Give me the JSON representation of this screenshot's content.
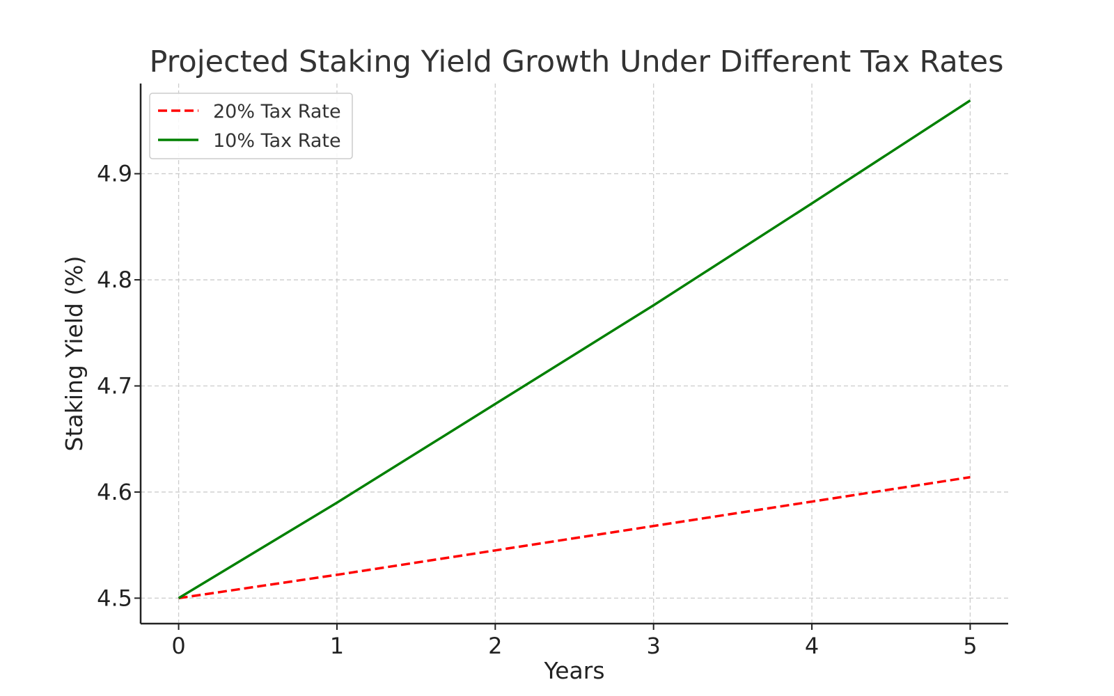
{
  "chart_data": {
    "type": "line",
    "title": "Projected Staking Yield Growth Under Different Tax Rates",
    "xlabel": "Years",
    "ylabel": "Staking Yield (%)",
    "x": [
      0,
      1,
      2,
      3,
      4,
      5
    ],
    "xlim": [
      -0.24,
      5.24
    ],
    "ylim": [
      4.476,
      4.985
    ],
    "x_ticks": [
      0,
      1,
      2,
      3,
      4,
      5
    ],
    "x_tick_labels": [
      "0",
      "1",
      "2",
      "3",
      "4",
      "5"
    ],
    "y_ticks": [
      4.5,
      4.6,
      4.7,
      4.8,
      4.9
    ],
    "y_tick_labels": [
      "4.5",
      "4.6",
      "4.7",
      "4.8",
      "4.9"
    ],
    "grid": true,
    "legend_position": "top-left",
    "series": [
      {
        "name": "20% Tax Rate",
        "color": "#ff0000",
        "style": "dashed",
        "values": [
          4.5,
          4.522,
          4.545,
          4.568,
          4.591,
          4.614
        ]
      },
      {
        "name": "10% Tax Rate",
        "color": "#008000",
        "style": "solid",
        "values": [
          4.5,
          4.59,
          4.683,
          4.776,
          4.872,
          4.969
        ]
      }
    ]
  }
}
